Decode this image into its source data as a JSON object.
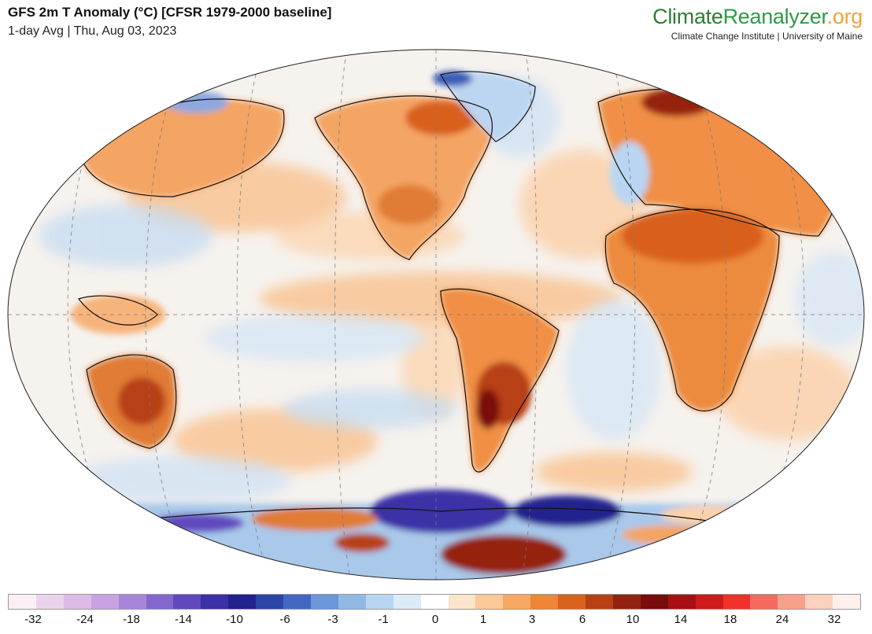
{
  "header": {
    "title": "GFS 2m T Anomaly (°C) [CFSR 1979-2000 baseline]",
    "subtitle": "1-day Avg | Thu, Aug 03, 2023"
  },
  "brand": {
    "name_part1": "Climate",
    "name_part2": "Reanalyzer",
    "name_tld": ".org",
    "tagline": "Climate Change Institute | University of Maine"
  },
  "legend": {
    "colors": [
      "#fbeef5",
      "#ecd3ec",
      "#dcbbe6",
      "#c8a2e2",
      "#a785d8",
      "#8367cc",
      "#6149bd",
      "#3b30a6",
      "#22228f",
      "#2d45a6",
      "#4368c2",
      "#6b97d8",
      "#92b9e6",
      "#b9d5f2",
      "#dcebf8",
      "#ffffff",
      "#fde4cc",
      "#fbc898",
      "#f7a864",
      "#f08536",
      "#d9601d",
      "#b84012",
      "#952210",
      "#7a0c0c",
      "#a80f14",
      "#cf1a1a",
      "#f0302a",
      "#f46a5e",
      "#f7a08c",
      "#fbd0bc",
      "#fff0ec"
    ],
    "tick_labels": [
      "-32",
      "-24",
      "-18",
      "-14",
      "-10",
      "-6",
      "-3",
      "-1",
      "0",
      "1",
      "3",
      "6",
      "10",
      "14",
      "18",
      "24",
      "32"
    ]
  }
}
